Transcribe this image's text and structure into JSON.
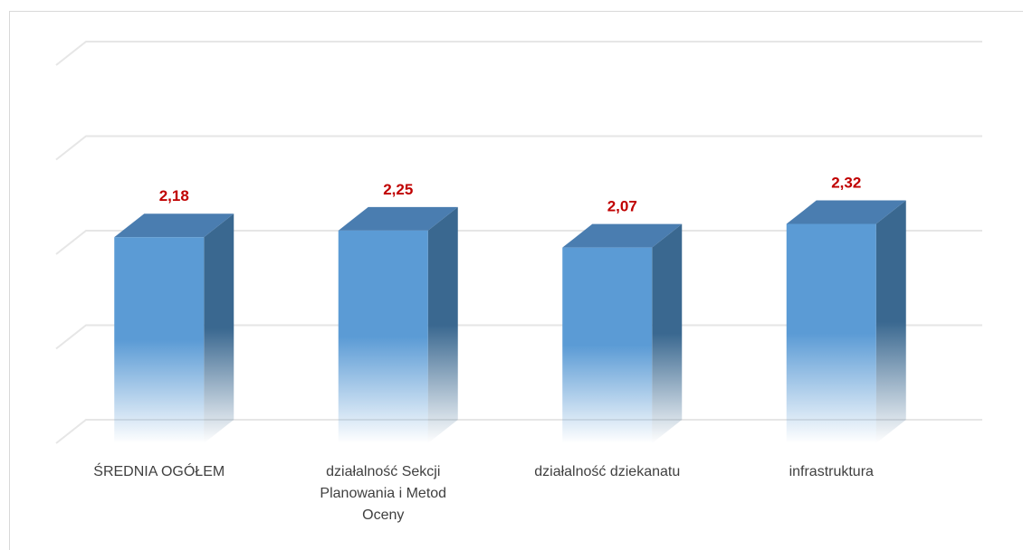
{
  "chart_data": {
    "type": "bar3d",
    "categories": [
      "ŚREDNIA OGÓŁEM",
      "działalność Sekcji Planowania i Metod Oceny",
      "działalność dziekanatu",
      "infrastruktura"
    ],
    "values": [
      2.18,
      2.25,
      2.07,
      2.32
    ],
    "value_labels": [
      "2,18",
      "2,25",
      "2,07",
      "2,32"
    ],
    "color": "#5b9bd5",
    "label_color": "#c00000",
    "ylim": [
      0,
      4
    ],
    "yticks": [
      0,
      1,
      2,
      3,
      4
    ],
    "grid": true
  }
}
